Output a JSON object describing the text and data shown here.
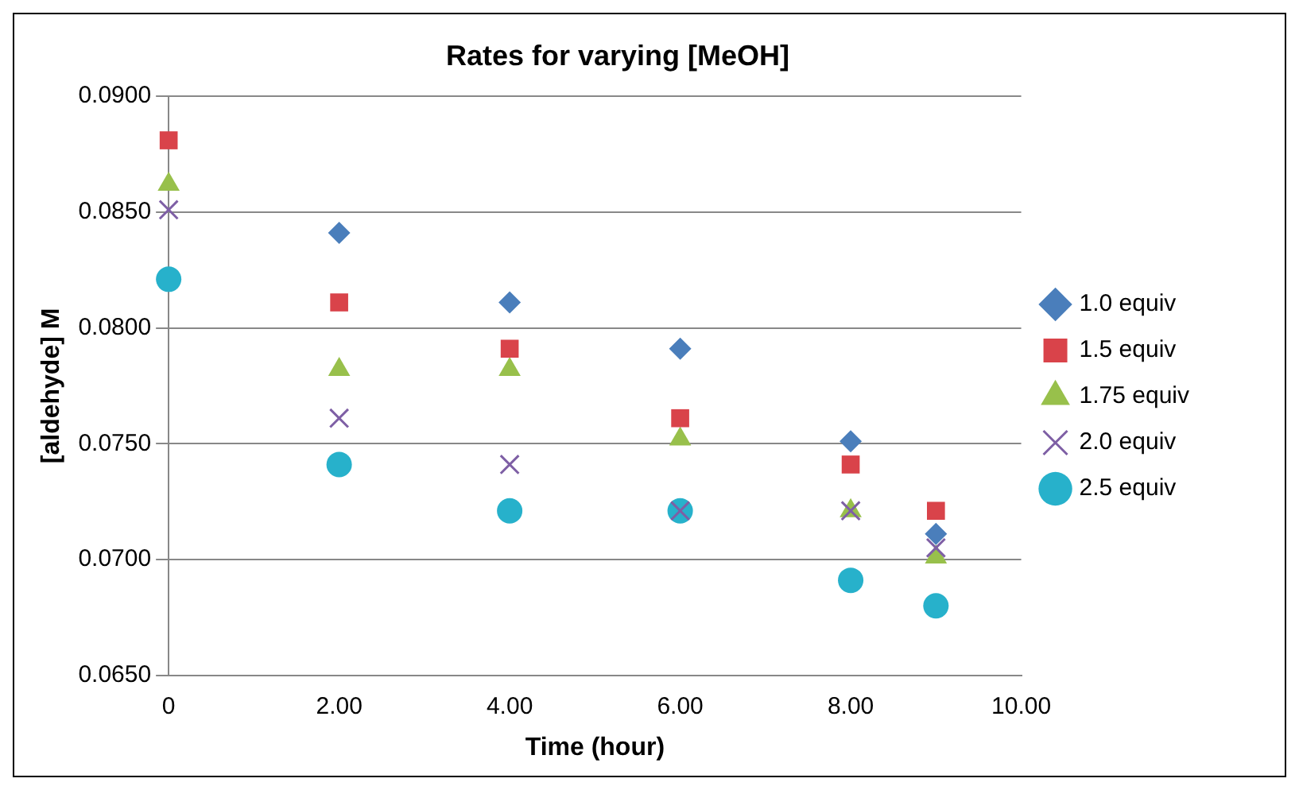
{
  "chart_data": {
    "type": "scatter",
    "title": "Rates for varying [MeOH]",
    "xlabel": "Time (hour)",
    "ylabel": "[aldehyde] M",
    "xlim": [
      0,
      10
    ],
    "xticks": [
      0,
      {
        "value": 2,
        "label": "2.00"
      },
      {
        "value": 4,
        "label": "4.00"
      },
      {
        "value": 6,
        "label": "6.00"
      },
      {
        "value": 8,
        "label": "8.00"
      },
      {
        "value": 10,
        "label": "10.00"
      }
    ],
    "ylim": [
      0.065,
      0.09
    ],
    "yticks": [
      {
        "value": 0.065,
        "label": "0.0650"
      },
      {
        "value": 0.07,
        "label": "0.0700"
      },
      {
        "value": 0.075,
        "label": "0.0750"
      },
      {
        "value": 0.08,
        "label": "0.0800"
      },
      {
        "value": 0.085,
        "label": "0.0850"
      },
      {
        "value": 0.09,
        "label": "0.0900"
      }
    ],
    "grid": "y",
    "legend": "right",
    "series": [
      {
        "name": "1.0 equiv",
        "color": "#4a7ebb",
        "marker": "diamond",
        "x": [
          2,
          4,
          6,
          8,
          9
        ],
        "values": [
          0.0841,
          0.0811,
          0.0791,
          0.0751,
          0.0711
        ]
      },
      {
        "name": "1.5 equiv",
        "color": "#d9434a",
        "marker": "square",
        "x": [
          0,
          2,
          4,
          6,
          8,
          9
        ],
        "values": [
          0.0881,
          0.0811,
          0.0791,
          0.0761,
          0.0741,
          0.0721
        ]
      },
      {
        "name": "1.75 equiv",
        "color": "#98c04b",
        "marker": "triangle",
        "x": [
          0,
          2,
          4,
          6,
          8,
          9
        ],
        "values": [
          0.0862,
          0.0782,
          0.0782,
          0.0752,
          0.0721,
          0.0701
        ]
      },
      {
        "name": "2.0 equiv",
        "color": "#7e5fa5",
        "marker": "cross",
        "x": [
          0,
          2,
          4,
          6,
          8,
          9
        ],
        "values": [
          0.0851,
          0.0761,
          0.0741,
          0.0721,
          0.0721,
          0.0705
        ]
      },
      {
        "name": "2.5 equiv",
        "color": "#27b1cb",
        "marker": "circle",
        "x": [
          0,
          2,
          4,
          6,
          8,
          9
        ],
        "values": [
          0.0821,
          0.0741,
          0.0721,
          0.0721,
          0.0691,
          0.068
        ]
      }
    ]
  }
}
